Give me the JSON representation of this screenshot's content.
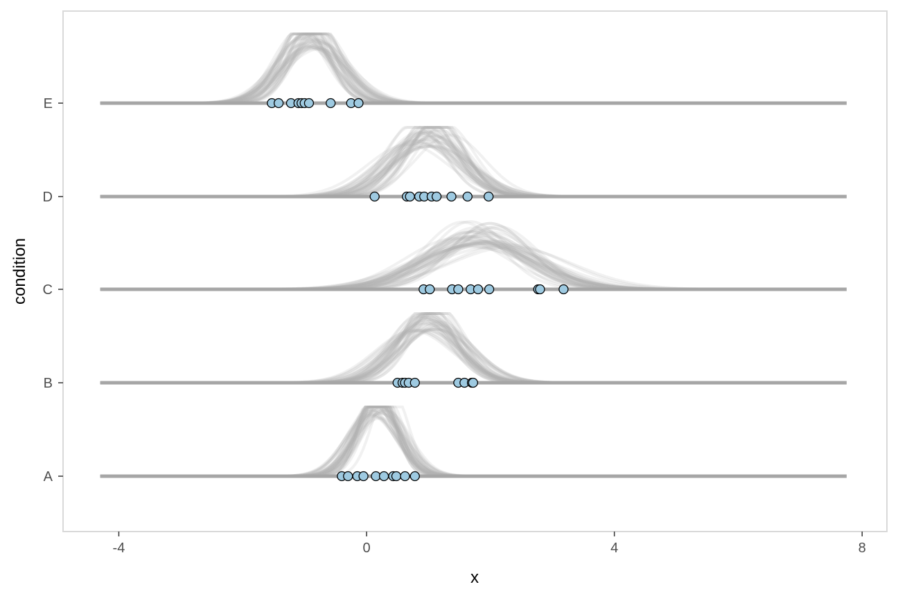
{
  "chart_data": {
    "type": "ridgeline",
    "xlabel": "x",
    "ylabel": "condition",
    "xlim": [
      -4.9,
      8.4
    ],
    "x_ticks": [
      -4,
      0,
      4,
      8
    ],
    "x_tick_labels": [
      "-4",
      "0",
      "4",
      "8"
    ],
    "grid": false,
    "categories": [
      "A",
      "B",
      "C",
      "D",
      "E"
    ],
    "observations": {
      "A": [
        -0.4,
        -0.3,
        -0.15,
        -0.05,
        0.15,
        0.28,
        0.43,
        0.48,
        0.62,
        0.78
      ],
      "B": [
        0.5,
        0.58,
        0.62,
        0.68,
        0.78,
        1.48,
        1.58,
        1.7,
        1.72
      ],
      "C": [
        0.92,
        1.02,
        1.38,
        1.48,
        1.68,
        1.8,
        1.98,
        2.77,
        2.8,
        3.18
      ],
      "D": [
        0.13,
        0.65,
        0.7,
        0.85,
        0.93,
        1.05,
        1.13,
        1.37,
        1.63,
        1.97
      ],
      "E": [
        -1.53,
        -1.42,
        -1.22,
        -1.1,
        -1.05,
        -1.0,
        -0.93,
        -0.58,
        -0.25,
        -0.13
      ]
    },
    "posterior_draws": {
      "count": 40,
      "A": {
        "mu": 0.2,
        "sd": 0.35
      },
      "B": {
        "mu": 1.0,
        "sd": 0.5
      },
      "C": {
        "mu": 1.8,
        "sd": 0.8
      },
      "D": {
        "mu": 1.0,
        "sd": 0.55
      },
      "E": {
        "mu": -0.9,
        "sd": 0.45
      }
    },
    "colors": {
      "baseline": "#a6a6a6",
      "density": "#b3b3b3",
      "point_fill": "#9ecae1",
      "point_stroke": "#000000",
      "panel_border": "#d9d9d9",
      "tick_text": "#4d4d4d"
    }
  }
}
